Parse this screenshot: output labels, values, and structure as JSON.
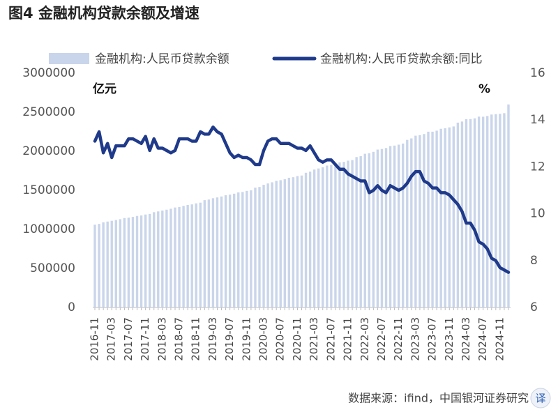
{
  "chart_data": {
    "type": "bar-line",
    "title": "图4  金融机构贷款余额及增速",
    "y_unit": "亿元",
    "y2_unit": "%",
    "source": "数据来源：ifind，中国银河证券研究",
    "translate_badge": "译",
    "categories": [
      "2016-11",
      null,
      null,
      null,
      "2017-03",
      null,
      null,
      null,
      "2017-07",
      null,
      null,
      null,
      "2017-11",
      null,
      null,
      null,
      "2018-03",
      null,
      null,
      null,
      "2018-07",
      null,
      null,
      null,
      "2018-11",
      null,
      null,
      null,
      "2019-03",
      null,
      null,
      null,
      "2019-07",
      null,
      null,
      null,
      "2019-11",
      null,
      null,
      null,
      "2020-03",
      null,
      null,
      null,
      "2020-07",
      null,
      null,
      null,
      "2020-11",
      null,
      null,
      null,
      "2021-03",
      null,
      null,
      null,
      "2021-07",
      null,
      null,
      null,
      "2021-11",
      null,
      null,
      null,
      "2022-03",
      null,
      null,
      null,
      "2022-07",
      null,
      null,
      null,
      "2022-11",
      null,
      null,
      null,
      "2023-03",
      null,
      null,
      null,
      "2023-07",
      null,
      null,
      null,
      "2023-11",
      null,
      null,
      null,
      "2024-03",
      null,
      null,
      null,
      "2024-07",
      null,
      null,
      null,
      "2024-11",
      null,
      null
    ],
    "series": [
      {
        "name": "金融机构:人民币贷款余额",
        "type": "bar",
        "color": "#c9d5ea",
        "values": [
          1060000,
          1070000,
          1090000,
          1100000,
          1110000,
          1120000,
          1130000,
          1145000,
          1150000,
          1160000,
          1172000,
          1178000,
          1190000,
          1198000,
          1220000,
          1230000,
          1241000,
          1252000,
          1264000,
          1280000,
          1287000,
          1300000,
          1313000,
          1320000,
          1333000,
          1342000,
          1374000,
          1382000,
          1399000,
          1409000,
          1421000,
          1437000,
          1445000,
          1457000,
          1473000,
          1479000,
          1493000,
          1500000,
          1534000,
          1543000,
          1571000,
          1588000,
          1603000,
          1621000,
          1630000,
          1642000,
          1661000,
          1668000,
          1682000,
          1690000,
          1725000,
          1739000,
          1766000,
          1780000,
          1795000,
          1817000,
          1826000,
          1840000,
          1857000,
          1864000,
          1880000,
          1887000,
          1926000,
          1937000,
          1968000,
          1975000,
          1993000,
          2022000,
          2029000,
          2042000,
          2067000,
          2073000,
          2085000,
          2099000,
          2146000,
          2165000,
          2200000,
          2207000,
          2221000,
          2251000,
          2251000,
          2264000,
          2288000,
          2295000,
          2306000,
          2318000,
          2367000,
          2381000,
          2412000,
          2413000,
          2422000,
          2444000,
          2443000,
          2452000,
          2471000,
          2476000,
          2480000,
          2488000,
          2600000
        ]
      },
      {
        "name": "金融机构:人民币贷款余额:同比",
        "type": "line",
        "axis": "y2",
        "color": "#1f3a8a",
        "values": [
          13.1,
          13.5,
          12.6,
          13.0,
          12.4,
          12.9,
          12.9,
          12.9,
          13.2,
          13.2,
          13.1,
          13.0,
          13.3,
          12.7,
          13.2,
          12.8,
          12.8,
          12.7,
          12.6,
          12.7,
          13.2,
          13.2,
          13.2,
          13.1,
          13.1,
          13.5,
          13.4,
          13.4,
          13.7,
          13.5,
          13.4,
          13.0,
          12.6,
          12.4,
          12.5,
          12.4,
          12.4,
          12.3,
          12.1,
          12.1,
          12.7,
          13.1,
          13.2,
          13.2,
          13.0,
          13.0,
          13.0,
          12.9,
          12.8,
          12.8,
          12.7,
          12.9,
          12.6,
          12.3,
          12.2,
          12.3,
          12.3,
          12.1,
          11.9,
          11.9,
          11.7,
          11.6,
          11.5,
          11.4,
          11.4,
          10.9,
          11.0,
          11.2,
          11.0,
          10.9,
          11.2,
          11.1,
          11.0,
          11.1,
          11.3,
          11.6,
          11.8,
          11.8,
          11.4,
          11.3,
          11.1,
          11.1,
          10.9,
          10.9,
          10.8,
          10.6,
          10.4,
          10.1,
          9.6,
          9.6,
          9.3,
          8.8,
          8.7,
          8.5,
          8.1,
          8.0,
          7.7,
          7.6,
          7.5
        ]
      }
    ],
    "ylim": [
      0,
      3000000
    ],
    "yticks": [
      0,
      500000,
      1000000,
      1500000,
      2000000,
      2500000,
      3000000
    ],
    "y2lim": [
      6,
      16
    ],
    "y2ticks": [
      6,
      8,
      10,
      12,
      14,
      16
    ],
    "grid": false,
    "legend": "top"
  }
}
